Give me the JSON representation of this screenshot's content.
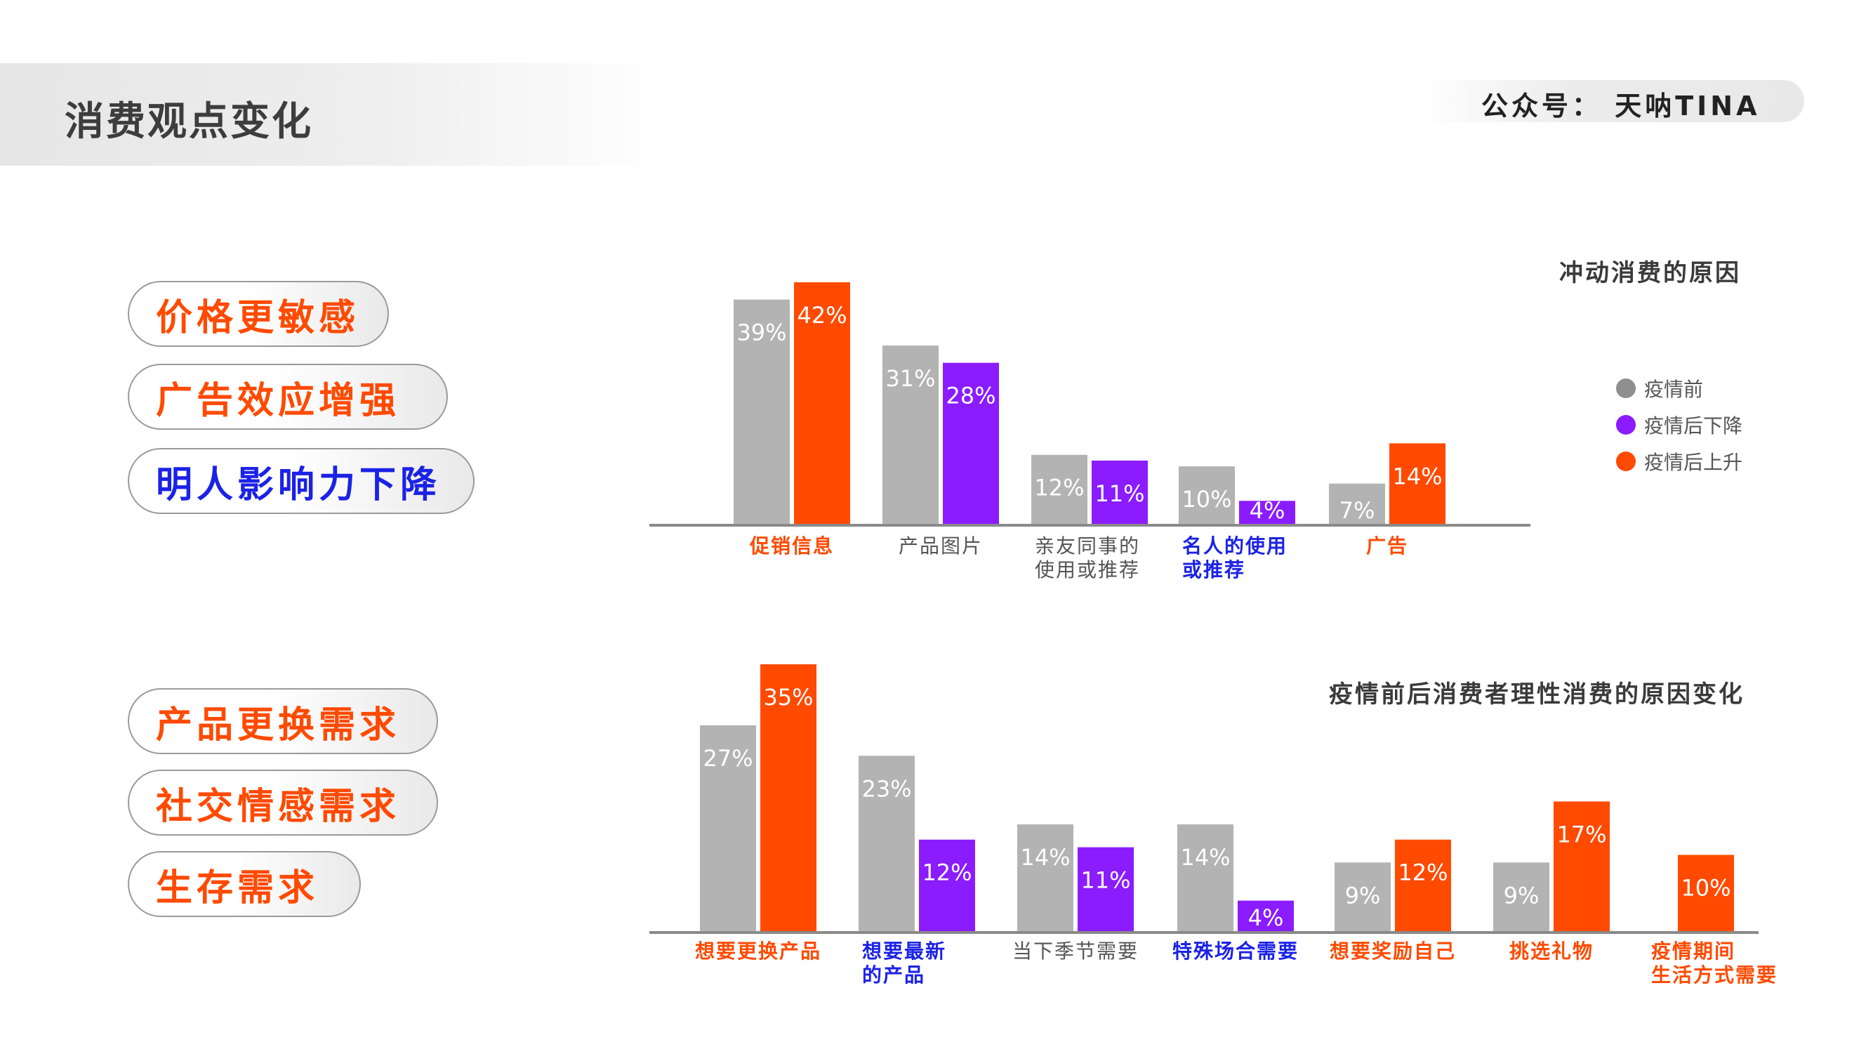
{
  "header": {
    "title": "消费观点变化",
    "brand": "公众号：  天呐TINA"
  },
  "colors": {
    "pre": "#b3b3b3",
    "down": "#8a1cff",
    "up": "#ff4a00",
    "accent_orange": "#ff4a00",
    "accent_blue": "#1b22e6"
  },
  "pills_top": [
    {
      "label": "价格更敏感",
      "color": "orange"
    },
    {
      "label": "广告效应增强",
      "color": "orange"
    },
    {
      "label": "明人影响力下降",
      "color": "blue"
    }
  ],
  "pills_bottom": [
    {
      "label": "产品更换需求",
      "color": "orange"
    },
    {
      "label": "社交情感需求",
      "color": "orange"
    },
    {
      "label": "生存需求",
      "color": "orange"
    }
  ],
  "legend": [
    {
      "label": "疫情前",
      "color": "#8f8f8f"
    },
    {
      "label": "疫情后下降",
      "color": "#8a1cff"
    },
    {
      "label": "疫情后上升",
      "color": "#ff4a00"
    }
  ],
  "chart_data": [
    {
      "type": "bar",
      "title": "冲动消费的原因",
      "ylim": [
        0,
        42
      ],
      "grid": false,
      "legend_position": "right",
      "categories": [
        {
          "label": [
            "促销信息"
          ],
          "label_color": "orange",
          "pre": 39,
          "post": 42,
          "post_kind": "up",
          "pre_label": "39%",
          "post_label": "42%"
        },
        {
          "label": [
            "产品图片"
          ],
          "label_color": "gray",
          "pre": 31,
          "post": 28,
          "post_kind": "down",
          "pre_label": "31%",
          "post_label": "28%"
        },
        {
          "label": [
            "亲友同事的",
            "使用或推荐"
          ],
          "label_color": "gray",
          "pre": 12,
          "post": 11,
          "post_kind": "down",
          "pre_label": "12%",
          "post_label": "11%"
        },
        {
          "label": [
            "名人的使用",
            "或推荐"
          ],
          "label_color": "blue",
          "pre": 10,
          "post": 4,
          "post_kind": "down",
          "pre_label": "10%",
          "post_label": "4%"
        },
        {
          "label": [
            "广告"
          ],
          "label_color": "orange",
          "pre": 7,
          "post": 14,
          "post_kind": "up",
          "pre_label": "7%",
          "post_label": "14%"
        }
      ]
    },
    {
      "type": "bar",
      "title": "疫情前后消费者理性消费的原因变化",
      "ylim": [
        0,
        35
      ],
      "grid": false,
      "categories": [
        {
          "label": [
            "想要更换产品"
          ],
          "label_color": "orange",
          "pre": 27,
          "post": 35,
          "post_kind": "up",
          "pre_label": "27%",
          "post_label": "35%"
        },
        {
          "label": [
            "想要最新",
            "的产品"
          ],
          "label_color": "blue",
          "pre": 23,
          "post": 12,
          "post_kind": "down",
          "pre_label": "23%",
          "post_label": "12%"
        },
        {
          "label": [
            "当下季节需要"
          ],
          "label_color": "gray",
          "pre": 14,
          "post": 11,
          "post_kind": "down",
          "pre_label": "14%",
          "post_label": "11%"
        },
        {
          "label": [
            "特殊场合需要"
          ],
          "label_color": "blue",
          "pre": 14,
          "post": 4,
          "post_kind": "down",
          "pre_label": "14%",
          "post_label": "4%"
        },
        {
          "label": [
            "想要奖励自己"
          ],
          "label_color": "orange",
          "pre": 9,
          "post": 12,
          "post_kind": "up",
          "pre_label": "9%",
          "post_label": "12%"
        },
        {
          "label": [
            "挑选礼物"
          ],
          "label_color": "orange",
          "pre": 9,
          "post": 17,
          "post_kind": "up",
          "pre_label": "9%",
          "post_label": "17%"
        },
        {
          "label": [
            "疫情期间",
            "生活方式需要"
          ],
          "label_color": "orange",
          "pre": null,
          "post": 10,
          "post_kind": "up",
          "pre_label": "",
          "post_label": "10%"
        }
      ]
    }
  ]
}
